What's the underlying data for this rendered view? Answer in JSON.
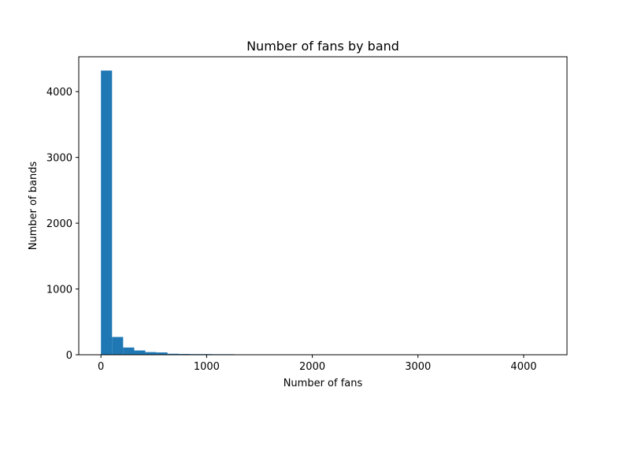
{
  "chart_data": {
    "type": "bar",
    "title": "Number of fans by band",
    "xlabel": "Number of fans",
    "ylabel": "Number of bands",
    "xlim": [
      -210,
      4410
    ],
    "ylim": [
      0,
      4530
    ],
    "xticks": [
      0,
      1000,
      2000,
      3000,
      4000
    ],
    "yticks": [
      0,
      1000,
      2000,
      3000,
      4000
    ],
    "bin_width": 105,
    "bin_start": 0,
    "counts": [
      4320,
      270,
      110,
      65,
      40,
      35,
      15,
      12,
      10,
      10,
      8,
      8,
      0,
      0,
      0,
      0,
      0,
      0,
      0,
      0,
      0,
      0,
      0,
      0,
      0,
      0,
      0,
      0,
      0,
      0,
      0,
      0,
      0,
      0,
      0,
      0,
      0,
      0,
      0,
      1
    ],
    "bar_color": "#1f77b4",
    "grid": false,
    "legend": "none"
  }
}
